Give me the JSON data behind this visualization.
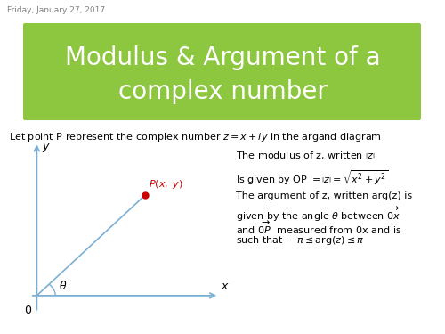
{
  "date_text": "Friday, January 27, 2017",
  "title_line1": "Modulus & Argument of a",
  "title_line2": "complex number",
  "title_bg_color": "#8DC63F",
  "title_text_color": "#FFFFFF",
  "body_bg_color": "#FFFFFF",
  "axis_color": "#7BAFD4",
  "line_color": "#7BAFD4",
  "point_color": "#CC0000",
  "angle_color": "#7BAFD4",
  "date_color": "#808080",
  "text_color": "#000000"
}
